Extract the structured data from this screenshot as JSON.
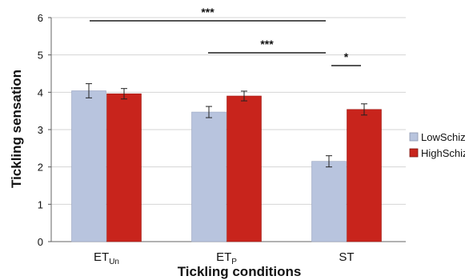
{
  "chart_data": {
    "type": "bar",
    "categories": [
      {
        "base": "ET",
        "sub": "Un"
      },
      {
        "base": "ET",
        "sub": "P"
      },
      {
        "base": "ST",
        "sub": ""
      }
    ],
    "series": [
      {
        "name": "LowSchiz",
        "color": "#b8c4de",
        "values": [
          4.04,
          3.47,
          2.15
        ],
        "errors": [
          0.19,
          0.15,
          0.15
        ]
      },
      {
        "name": "HighSchiz",
        "color": "#c8241c",
        "values": [
          3.96,
          3.9,
          3.54
        ],
        "errors": [
          0.14,
          0.13,
          0.15
        ]
      }
    ],
    "xlabel": "Tickling conditions",
    "ylabel": "Tickling sensation",
    "ylim": [
      0,
      6
    ],
    "yticks": [
      0,
      1,
      2,
      3,
      4,
      5,
      6
    ],
    "grid": "horizontal",
    "legend": "right",
    "significance": [
      {
        "label": "***",
        "from_category": 0,
        "to_category": 2
      },
      {
        "label": "***",
        "from_category": 1,
        "to_category": 2
      },
      {
        "label": "*",
        "from_category": 2,
        "to_category": 2
      }
    ]
  }
}
